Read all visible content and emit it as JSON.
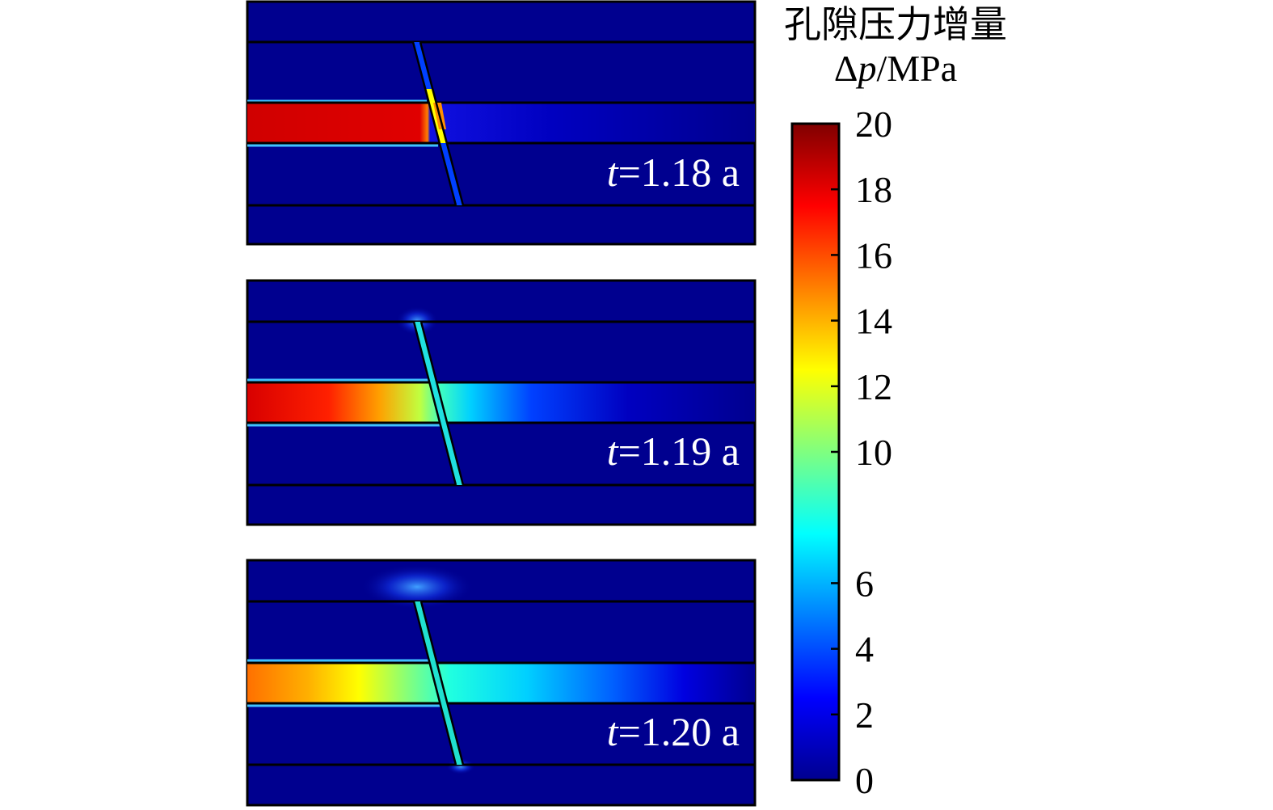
{
  "colorbar": {
    "title_line1": "孔隙压力增量",
    "title_sym": "Δ",
    "title_var": "p",
    "title_unit": "/MPa",
    "min": 0,
    "max": 20,
    "ticks": [
      "20",
      "18",
      "16",
      "14",
      "12",
      "10",
      "6",
      "4",
      "2",
      "0"
    ],
    "colors": [
      "#00008f",
      "#0000ff",
      "#00ffff",
      "#ffff00",
      "#ff0000",
      "#800000"
    ]
  },
  "panels": [
    {
      "t_var": "t",
      "t_label": "=1.18 a",
      "front": 0.36,
      "fault_value": 12,
      "head_value": 18
    },
    {
      "t_var": "t",
      "t_label": "=1.19 a",
      "front": 0.55,
      "fault_value": 7,
      "head_value": 18
    },
    {
      "t_var": "t",
      "t_label": "=1.20 a",
      "front": 0.88,
      "fault_value": 7,
      "head_value": 15.5
    }
  ],
  "colors": {
    "background": "#00008f",
    "line": "#000000"
  }
}
